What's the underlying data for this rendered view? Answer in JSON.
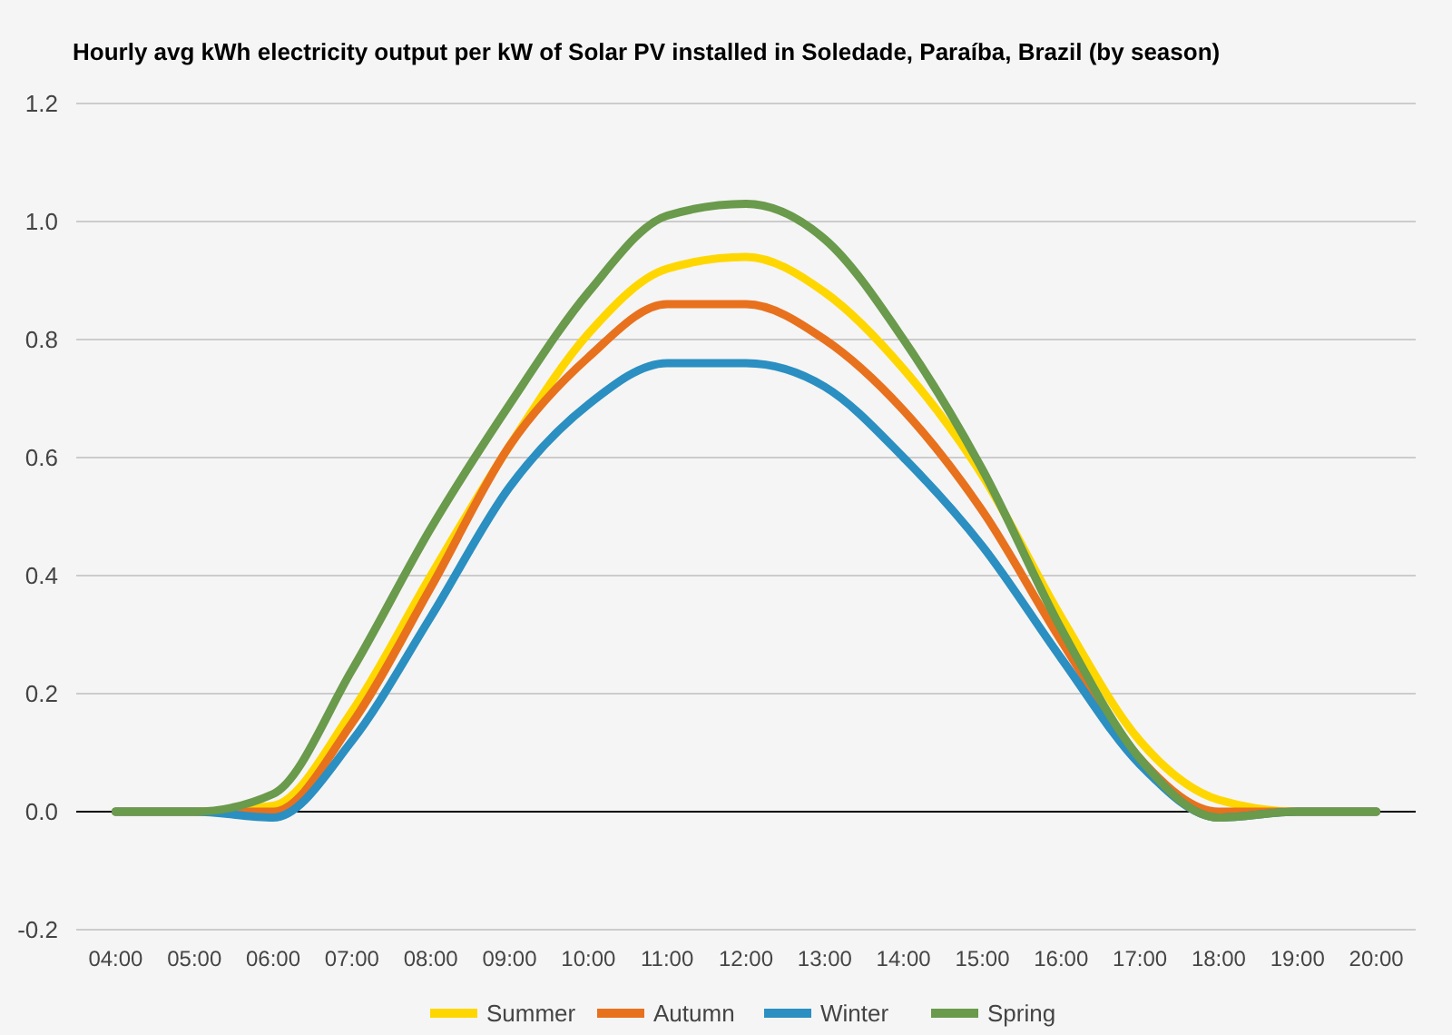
{
  "chart_data": {
    "type": "line",
    "title": "Hourly avg kWh electricity output per kW of Solar PV installed in Soledade, Paraíba, Brazil (by season)",
    "x": [
      4,
      5,
      6,
      7,
      8,
      9,
      10,
      11,
      12,
      13,
      14,
      15,
      16,
      17,
      18,
      19,
      20
    ],
    "series": [
      {
        "name": "Summer",
        "color": "#ffd700",
        "values": [
          0,
          0,
          0.01,
          0.17,
          0.4,
          0.62,
          0.81,
          0.92,
          0.94,
          0.88,
          0.75,
          0.57,
          0.33,
          0.12,
          0.02,
          0,
          0
        ]
      },
      {
        "name": "Autumn",
        "color": "#e8711e",
        "values": [
          0,
          0,
          0,
          0.15,
          0.38,
          0.62,
          0.77,
          0.86,
          0.86,
          0.8,
          0.68,
          0.51,
          0.29,
          0.09,
          0,
          0,
          0
        ]
      },
      {
        "name": "Winter",
        "color": "#2b8fc1",
        "values": [
          0,
          0,
          -0.01,
          0.12,
          0.33,
          0.55,
          0.69,
          0.76,
          0.76,
          0.72,
          0.6,
          0.45,
          0.26,
          0.08,
          -0.01,
          0,
          0
        ]
      },
      {
        "name": "Spring",
        "color": "#6a9a4b",
        "values": [
          0,
          0,
          0.03,
          0.24,
          0.48,
          0.69,
          0.88,
          1.01,
          1.03,
          0.97,
          0.8,
          0.58,
          0.31,
          0.09,
          -0.01,
          0,
          0
        ]
      }
    ],
    "xlim": [
      3.5,
      20.5
    ],
    "xticks": [
      {
        "value": 4,
        "label": "04:00"
      },
      {
        "value": 5,
        "label": "05:00"
      },
      {
        "value": 6,
        "label": "06:00"
      },
      {
        "value": 7,
        "label": "07:00"
      },
      {
        "value": 8,
        "label": "08:00"
      },
      {
        "value": 9,
        "label": "09:00"
      },
      {
        "value": 10,
        "label": "10:00"
      },
      {
        "value": 11,
        "label": "11:00"
      },
      {
        "value": 12,
        "label": "12:00"
      },
      {
        "value": 13,
        "label": "13:00"
      },
      {
        "value": 14,
        "label": "14:00"
      },
      {
        "value": 15,
        "label": "15:00"
      },
      {
        "value": 16,
        "label": "16:00"
      },
      {
        "value": 17,
        "label": "17:00"
      },
      {
        "value": 18,
        "label": "18:00"
      },
      {
        "value": 19,
        "label": "19:00"
      },
      {
        "value": 20,
        "label": "20:00"
      }
    ],
    "ylim": [
      -0.2,
      1.2
    ],
    "yticks": [
      -0.2,
      {
        "value": 0,
        "label": "0.0"
      },
      0.2,
      0.4,
      0.6,
      0.8,
      {
        "value": 1,
        "label": "1.0"
      },
      1.2
    ],
    "ref_lines": [
      {
        "axis": "y",
        "value": 0,
        "color": "#000000"
      }
    ],
    "grid": "y",
    "legend": "bottom",
    "marker": "none",
    "line_style": "solid"
  }
}
